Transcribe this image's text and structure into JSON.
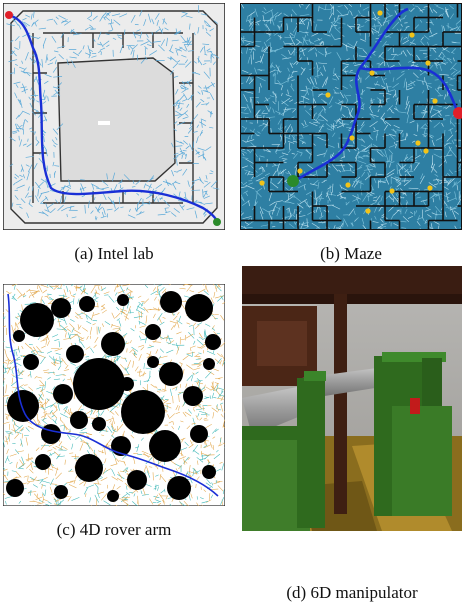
{
  "figure": {
    "panels": [
      {
        "id": "a",
        "caption": "(a) Intel lab"
      },
      {
        "id": "b",
        "caption": "(b) Maze"
      },
      {
        "id": "c",
        "caption": "(c) 4D rover arm"
      },
      {
        "id": "d",
        "caption": "(d) 6D manipulator"
      }
    ]
  },
  "colors": {
    "path": "#1a2fd6",
    "tree": "#5aa9d8",
    "tree_dark": "#2a6f95",
    "tree_orange": "#e1a64a",
    "tree_teal": "#3cb6b6",
    "start": "#2a8a2a",
    "goal": "#e0202a",
    "waypoint": "#f2c318",
    "obstacle": "#000000"
  }
}
